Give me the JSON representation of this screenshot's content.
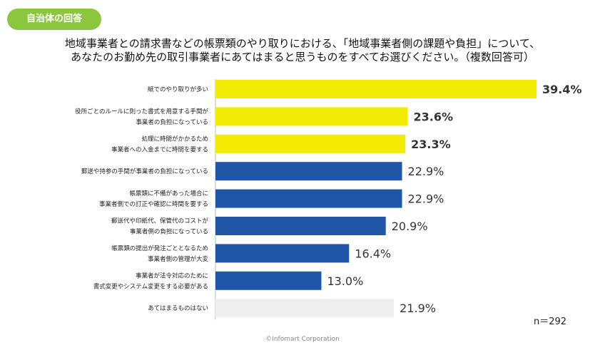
{
  "badge": "自治体の回答",
  "title_line1": "地域事業者との請求書などの帳票類のやり取りにおける、「地域事業者側の課題や負担」について、",
  "title_line2": "あなたのお勤め先の取引事業者にあてはまると思うものをすべてお選びください。（複数回答可）",
  "n_label": "n＝292",
  "footer": "©Infomart Corporation",
  "colors": {
    "highlight": "#f2ec05",
    "standard": "#1f56a8",
    "none": "#eeeeee",
    "badge": "#8cc63f"
  },
  "chart_data": {
    "type": "bar",
    "orientation": "horizontal",
    "unit": "%",
    "categories": [
      [
        "紙でのやり取りが多い"
      ],
      [
        "役所ごとのルールに則った書式を用意する手間が",
        "事業者の負担になっている"
      ],
      [
        "処理に時間がかかるため",
        "事業者への入金までに時間を要する"
      ],
      [
        "郵送や持参の手間が事業者の負担になっている"
      ],
      [
        "帳票類に不備があった場合に",
        "事業者側での訂正や確認に時間を要する"
      ],
      [
        "郵送代や印紙代、保管代のコストが",
        "事業者側の負担になっている"
      ],
      [
        "帳票類の提出が発注ごととなるため",
        "事業者側の管理が大変"
      ],
      [
        "事業者が法令対応のために",
        "書式変更やシステム変更をする必要がある"
      ],
      [
        "あてはまるものはない"
      ]
    ],
    "values": [
      39.4,
      23.6,
      23.3,
      22.9,
      22.9,
      20.9,
      16.4,
      13.0,
      21.9
    ],
    "labels": [
      "39.4%",
      "23.6%",
      "23.3%",
      "22.9%",
      "22.9%",
      "20.9%",
      "16.4%",
      "13.0%",
      "21.9%"
    ],
    "bar_color_groups": [
      "highlight",
      "highlight",
      "highlight",
      "standard",
      "standard",
      "standard",
      "standard",
      "standard",
      "none"
    ],
    "bold_labels": [
      true,
      true,
      true,
      false,
      false,
      false,
      false,
      false,
      false
    ]
  }
}
